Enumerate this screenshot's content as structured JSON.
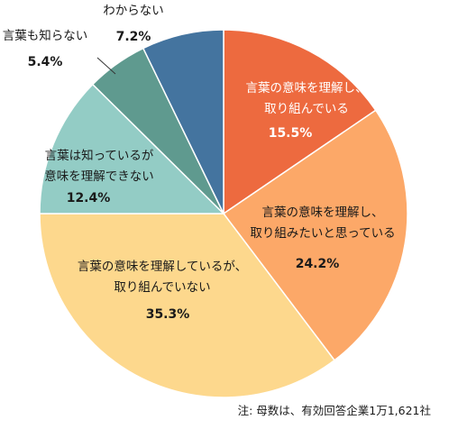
{
  "chart_data": {
    "type": "pie",
    "title": "",
    "start": "top, clockwise",
    "slices": [
      {
        "label": [
          "言葉の意味を理解し、",
          "取り組んでいる"
        ],
        "value": 15.5,
        "display": "15.5%",
        "color": "#ed6a3f",
        "text": "light"
      },
      {
        "label": [
          "言葉の意味を理解し、",
          "取り組みたいと思っている"
        ],
        "value": 24.2,
        "display": "24.2%",
        "color": "#fca868",
        "text": "dark"
      },
      {
        "label": [
          "言葉の意味を理解しているが、",
          "取り組んでいない"
        ],
        "value": 35.3,
        "display": "35.3%",
        "color": "#fdd88d",
        "text": "dark"
      },
      {
        "label": [
          "言葉は知っているが",
          "意味を理解できない"
        ],
        "value": 12.4,
        "display": "12.4%",
        "color": "#93ccc5",
        "text": "dark"
      },
      {
        "label": [
          "言葉も知らない"
        ],
        "value": 5.4,
        "display": "5.4%",
        "color": "#5f9a8f",
        "text": "dark"
      },
      {
        "label": [
          "わからない"
        ],
        "value": 7.2,
        "display": "7.2%",
        "color": "#44749f",
        "text": "dark"
      }
    ]
  },
  "note": "注: 母数は、有効回答企業1万1,621社"
}
